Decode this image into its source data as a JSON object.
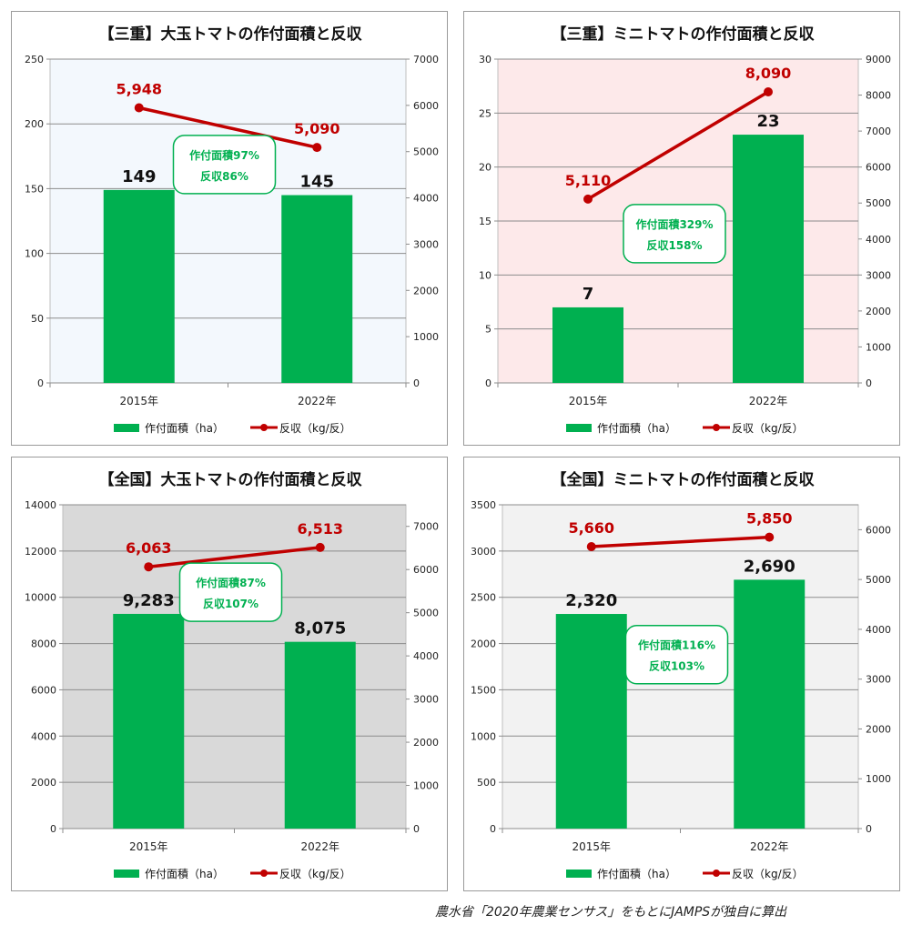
{
  "source_note": "農水省「2020年農業センサス」をもとにJAMPSが独自に算出",
  "chart_data": [
    {
      "type": "bar",
      "title": "【三重】大玉トマトの作付面積と反収",
      "categories": [
        "2015年",
        "2022年"
      ],
      "series": [
        {
          "name": "作付面積（ha）",
          "type": "bar",
          "axis": "left",
          "values": [
            149,
            145
          ],
          "labels": [
            "149",
            "145"
          ],
          "color": "#00b050"
        },
        {
          "name": "反収（kg/反）",
          "type": "line",
          "axis": "right",
          "values": [
            5948,
            5090
          ],
          "labels": [
            "5,948",
            "5,090"
          ],
          "color": "#c00000"
        }
      ],
      "left_axis": {
        "min": 0,
        "max": 250,
        "ticks": [
          "0",
          "50",
          "100",
          "150",
          "200",
          "250"
        ]
      },
      "right_axis": {
        "min": 0,
        "max": 7000,
        "ticks": [
          "0",
          "1000",
          "2000",
          "3000",
          "4000",
          "5000",
          "6000",
          "7000"
        ]
      },
      "plot_bg": "#f3f8fd",
      "annotation": {
        "line1": "作付面積97%",
        "line2": "反収86%"
      },
      "legend": "bottom"
    },
    {
      "type": "bar",
      "title": "【三重】ミニトマトの作付面積と反収",
      "categories": [
        "2015年",
        "2022年"
      ],
      "series": [
        {
          "name": "作付面積（ha）",
          "type": "bar",
          "axis": "left",
          "values": [
            7,
            23
          ],
          "labels": [
            "7",
            "23"
          ],
          "color": "#00b050"
        },
        {
          "name": "反収（kg/反）",
          "type": "line",
          "axis": "right",
          "values": [
            5110,
            8090
          ],
          "labels": [
            "5,110",
            "8,090"
          ],
          "color": "#c00000"
        }
      ],
      "left_axis": {
        "min": 0,
        "max": 30,
        "ticks": [
          "0",
          "5",
          "10",
          "15",
          "20",
          "25",
          "30"
        ]
      },
      "right_axis": {
        "min": 0,
        "max": 9000,
        "ticks": [
          "0",
          "1000",
          "2000",
          "3000",
          "4000",
          "5000",
          "6000",
          "7000",
          "8000",
          "9000"
        ]
      },
      "plot_bg": "#fde9ea",
      "annotation": {
        "line1": "作付面積329%",
        "line2": "反収158%"
      },
      "legend": "bottom"
    },
    {
      "type": "bar",
      "title": "【全国】大玉トマトの作付面積と反収",
      "categories": [
        "2015年",
        "2022年"
      ],
      "series": [
        {
          "name": "作付面積（ha）",
          "type": "bar",
          "axis": "left",
          "values": [
            9283,
            8075
          ],
          "labels": [
            "9,283",
            "8,075"
          ],
          "color": "#00b050"
        },
        {
          "name": "反収（kg/反）",
          "type": "line",
          "axis": "right",
          "values": [
            6063,
            6513
          ],
          "labels": [
            "6,063",
            "6,513"
          ],
          "color": "#c00000"
        }
      ],
      "left_axis": {
        "min": 0,
        "max": 14000,
        "ticks": [
          "0",
          "2000",
          "4000",
          "6000",
          "8000",
          "10000",
          "12000",
          "14000"
        ]
      },
      "right_axis": {
        "min": 0,
        "max": 7500,
        "ticks": [
          "0",
          "1000",
          "2000",
          "3000",
          "4000",
          "5000",
          "6000",
          "7000"
        ]
      },
      "plot_bg": "#d9d9d9",
      "annotation": {
        "line1": "作付面積87%",
        "line2": "反収107%"
      },
      "legend": "bottom"
    },
    {
      "type": "bar",
      "title": "【全国】ミニトマトの作付面積と反収",
      "categories": [
        "2015年",
        "2022年"
      ],
      "series": [
        {
          "name": "作付面積（ha）",
          "type": "bar",
          "axis": "left",
          "values": [
            2320,
            2690
          ],
          "labels": [
            "2,320",
            "2,690"
          ],
          "color": "#00b050"
        },
        {
          "name": "反収（kg/反）",
          "type": "line",
          "axis": "right",
          "values": [
            5660,
            5850
          ],
          "labels": [
            "5,660",
            "5,850"
          ],
          "color": "#c00000"
        }
      ],
      "left_axis": {
        "min": 0,
        "max": 3500,
        "ticks": [
          "0",
          "500",
          "1000",
          "1500",
          "2000",
          "2500",
          "3000",
          "3500"
        ]
      },
      "right_axis": {
        "min": 0,
        "max": 6500,
        "ticks": [
          "0",
          "1000",
          "2000",
          "3000",
          "4000",
          "5000",
          "6000"
        ]
      },
      "plot_bg": "#f2f2f2",
      "annotation": {
        "line1": "作付面積116%",
        "line2": "反収103%"
      },
      "legend": "bottom"
    }
  ]
}
